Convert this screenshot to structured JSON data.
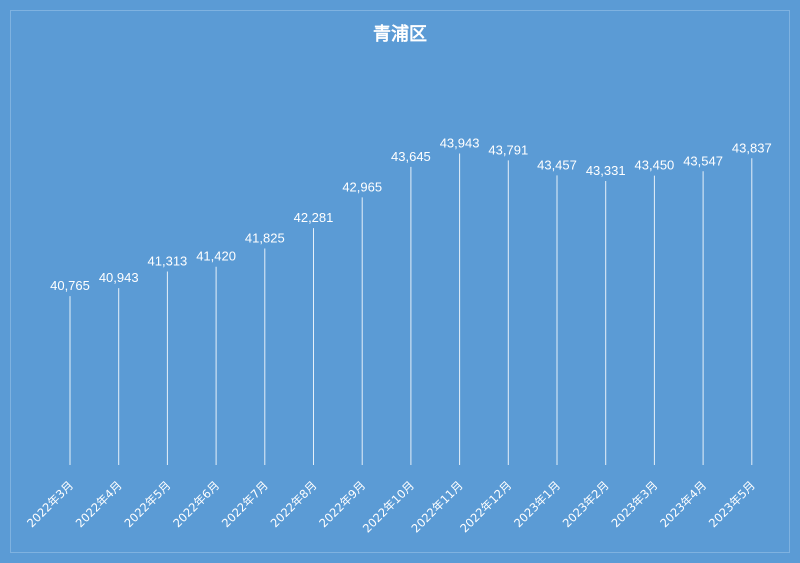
{
  "colors": {
    "background": "#5b9bd5",
    "frame": "#7fb2e0",
    "line": "#ffffff",
    "drop_line": "#ffffff",
    "text": "#ffffff"
  },
  "chart_data": {
    "type": "line",
    "title": "青浦区",
    "xlabel": "",
    "ylabel": "",
    "legend": "none",
    "grid": false,
    "categories": [
      "2022年3月",
      "2022年4月",
      "2022年5月",
      "2022年6月",
      "2022年7月",
      "2022年8月",
      "2022年9月",
      "2022年10月",
      "2022年11月",
      "2022年12月",
      "2023年1月",
      "2023年2月",
      "2023年3月",
      "2023年4月",
      "2023年5月"
    ],
    "values": [
      40765,
      40943,
      41313,
      41420,
      41825,
      42281,
      42965,
      43645,
      43943,
      43791,
      43457,
      43331,
      43450,
      43547,
      43837
    ],
    "value_labels": [
      "40,765",
      "40,943",
      "41,313",
      "41,420",
      "41,825",
      "42,281",
      "42,965",
      "43,645",
      "43,943",
      "43,791",
      "43,457",
      "43,331",
      "43,450",
      "43,547",
      "43,837"
    ],
    "ylim": [
      37000,
      44200
    ]
  }
}
